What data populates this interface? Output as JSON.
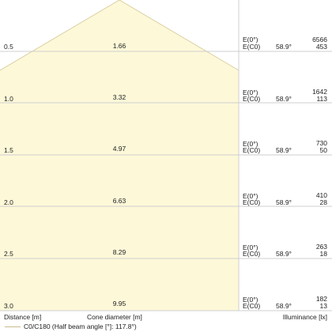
{
  "colors": {
    "cone_fill": "#fdf8d8",
    "cone_edge": "#d9cfa2",
    "grid": "#cfcfcf",
    "text": "#222222"
  },
  "rows": [
    {
      "distance": "0.5",
      "diameter": "1.66",
      "e0_label": "E(0°)",
      "ec0_label": "E(C0)",
      "angle": "58.9°",
      "e0": "6566",
      "ec0": "453"
    },
    {
      "distance": "1.0",
      "diameter": "3.32",
      "e0_label": "E(0°)",
      "ec0_label": "E(C0)",
      "angle": "58.9°",
      "e0": "1642",
      "ec0": "113"
    },
    {
      "distance": "1.5",
      "diameter": "4.97",
      "e0_label": "E(0°)",
      "ec0_label": "E(C0)",
      "angle": "58.9°",
      "e0": "730",
      "ec0": "50"
    },
    {
      "distance": "2.0",
      "diameter": "6.63",
      "e0_label": "E(0°)",
      "ec0_label": "E(C0)",
      "angle": "58.9°",
      "e0": "410",
      "ec0": "28"
    },
    {
      "distance": "2.5",
      "diameter": "8.29",
      "e0_label": "E(0°)",
      "ec0_label": "E(C0)",
      "angle": "58.9°",
      "e0": "263",
      "ec0": "18"
    },
    {
      "distance": "3.0",
      "diameter": "9.95",
      "e0_label": "E(0°)",
      "ec0_label": "E(C0)",
      "angle": "58.9°",
      "e0": "182",
      "ec0": "13"
    }
  ],
  "footer": {
    "distance_label": "Distance [m]",
    "diameter_label": "Cone diameter [m]",
    "illuminance_label": "Illuminance [lx]"
  },
  "legend": {
    "label": "C0/C180 (Half beam angle [°]: 117.8°)"
  }
}
